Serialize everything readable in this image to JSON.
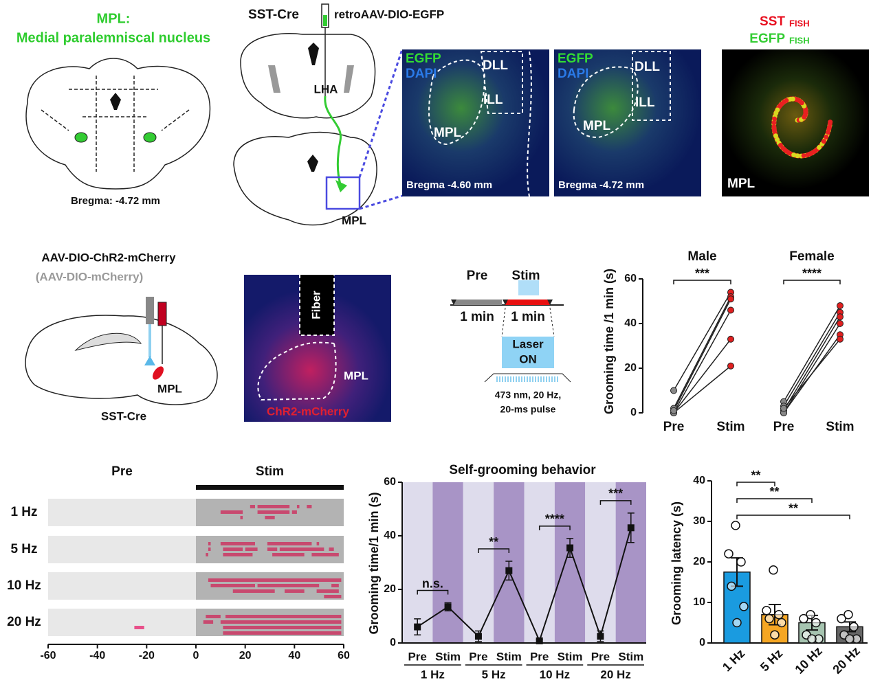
{
  "panel_a": {
    "title": "MPL:",
    "subtitle": "Medial paralemniscal nucleus",
    "bregma": "Bregma: -4.72 mm"
  },
  "panel_b": {
    "mouse": "SST-Cre",
    "virus": "retroAAV-DIO-EGFP",
    "injection_site": "LHA",
    "target": "MPL",
    "images": [
      {
        "labels": [
          "EGFP",
          "DAPI",
          "DLL",
          "ILL",
          "MPL"
        ],
        "bregma": "Bregma -4.60 mm"
      },
      {
        "labels": [
          "EGFP",
          "DAPI",
          "DLL",
          "ILL",
          "MPL"
        ],
        "bregma": "Bregma -4.72 mm"
      }
    ],
    "fish": {
      "labels": [
        "SST",
        "EGFP"
      ],
      "tag": "FISH",
      "region": "MPL"
    }
  },
  "panel_c": {
    "virus": "AAV-DIO-ChR2-mCherry",
    "control": "(AAV-DIO-mCherry)",
    "target": "MPL",
    "mouse": "SST-Cre",
    "image_labels": [
      "Fiber",
      "MPL",
      "ChR2-mCherry"
    ]
  },
  "protocol": {
    "phases": [
      "Pre",
      "Stim"
    ],
    "duration": "1 min",
    "laser": [
      "Laser",
      "ON"
    ],
    "params": [
      "473 nm, 20 Hz,",
      "20-ms pulse"
    ]
  },
  "chart_data": [
    {
      "type": "paired_dot",
      "ylabel": "Grooming time /1 min (s)",
      "categories": [
        "Pre",
        "Stim"
      ],
      "ylim": [
        0,
        60
      ],
      "yticks": [
        0,
        20,
        40,
        60
      ],
      "colors": [
        "#888888",
        "#e02020"
      ],
      "groups": [
        {
          "name": "Male",
          "significance": "***",
          "pre": [
            10,
            2,
            0,
            0,
            0,
            1
          ],
          "stim": [
            54,
            52,
            46,
            33,
            21,
            51
          ]
        },
        {
          "name": "Female",
          "significance": "****",
          "pre": [
            5,
            3,
            1,
            0,
            0,
            2
          ],
          "stim": [
            48,
            45,
            43,
            40,
            35,
            33
          ]
        }
      ]
    },
    {
      "type": "raster",
      "headers": [
        "Pre",
        "Stim"
      ],
      "xlim": [
        -60,
        60
      ],
      "xticks": [
        -60,
        -40,
        -20,
        0,
        20,
        40,
        60
      ],
      "color": "#c8496f",
      "rows": [
        {
          "name": "1 Hz",
          "trials": [
            [
              [
                22,
                24
              ],
              [
                25,
                38
              ],
              [
                41,
                42
              ],
              [
                45,
                47
              ]
            ],
            [
              [
                10,
                19
              ],
              [
                25,
                38
              ],
              [
                39,
                41
              ]
            ],
            [
              [
                18,
                19
              ],
              [
                28,
                32
              ]
            ],
            []
          ]
        },
        {
          "name": "5 Hz",
          "trials": [
            [
              [
                5,
                6
              ],
              [
                10,
                24
              ],
              [
                29,
                47
              ],
              [
                49,
                50
              ]
            ],
            [
              [
                5,
                6
              ],
              [
                11,
                19
              ],
              [
                20,
                25
              ],
              [
                29,
                33
              ],
              [
                34,
                52
              ],
              [
                54,
                56
              ]
            ],
            [
              [
                4,
                5
              ],
              [
                11,
                23
              ],
              [
                31,
                44
              ],
              [
                47,
                58
              ]
            ],
            []
          ]
        },
        {
          "name": "10 Hz",
          "trials": [
            [
              [
                5,
                59
              ]
            ],
            [
              [
                6,
                24
              ],
              [
                25,
                50
              ],
              [
                55,
                58
              ]
            ],
            [
              [
                15,
                32
              ],
              [
                36,
                44
              ],
              [
                49,
                58
              ]
            ],
            [
              [
                52,
                59
              ]
            ]
          ]
        },
        {
          "name": "20 Hz",
          "trials": [
            [
              [
                4,
                10
              ],
              [
                12,
                59
              ]
            ],
            [
              [
                3,
                7
              ],
              [
                10,
                59
              ]
            ],
            [
              [
                -25,
                -21
              ],
              [
                11,
                59
              ]
            ],
            [
              [
                11,
                59
              ]
            ]
          ]
        }
      ]
    },
    {
      "type": "line_error",
      "title": "Self-grooming behavior",
      "ylabel": "Grooming time/1 min (s)",
      "ylim": [
        0,
        60
      ],
      "yticks": [
        0,
        20,
        40,
        60
      ],
      "categories": [
        "Pre",
        "Stim",
        "Pre",
        "Stim",
        "Pre",
        "Stim",
        "Pre",
        "Stim"
      ],
      "groups": [
        "1 Hz",
        "5 Hz",
        "10 Hz",
        "20 Hz"
      ],
      "values": [
        6,
        13.5,
        2.5,
        27,
        0.8,
        35.5,
        2.5,
        43
      ],
      "errors": [
        3,
        1.5,
        2,
        3.5,
        0.5,
        3.5,
        2,
        5.5
      ],
      "significance": [
        "n.s.",
        "**",
        "****",
        "***"
      ],
      "colors": [
        "#dedcec",
        "#a894c6"
      ]
    },
    {
      "type": "bar_dot",
      "ylabel": "Grooming latency (s)",
      "ylim": [
        0,
        40
      ],
      "yticks": [
        0,
        10,
        20,
        30,
        40
      ],
      "categories": [
        "1 Hz",
        "5 Hz",
        "10 Hz",
        "20 Hz"
      ],
      "values": [
        17.5,
        7,
        5,
        4
      ],
      "errors": [
        3.5,
        2.5,
        1.8,
        1.2
      ],
      "points": [
        [
          29,
          22,
          20,
          14,
          9,
          5
        ],
        [
          18,
          8,
          7,
          6,
          5,
          2
        ],
        [
          7,
          6,
          5,
          2,
          1,
          1
        ],
        [
          7,
          6,
          4,
          2,
          1,
          1
        ]
      ],
      "colors": [
        "#1a9be0",
        "#f5a623",
        "#a6c4b0",
        "#666666"
      ],
      "significance": [
        "**",
        "**",
        "**"
      ]
    }
  ]
}
